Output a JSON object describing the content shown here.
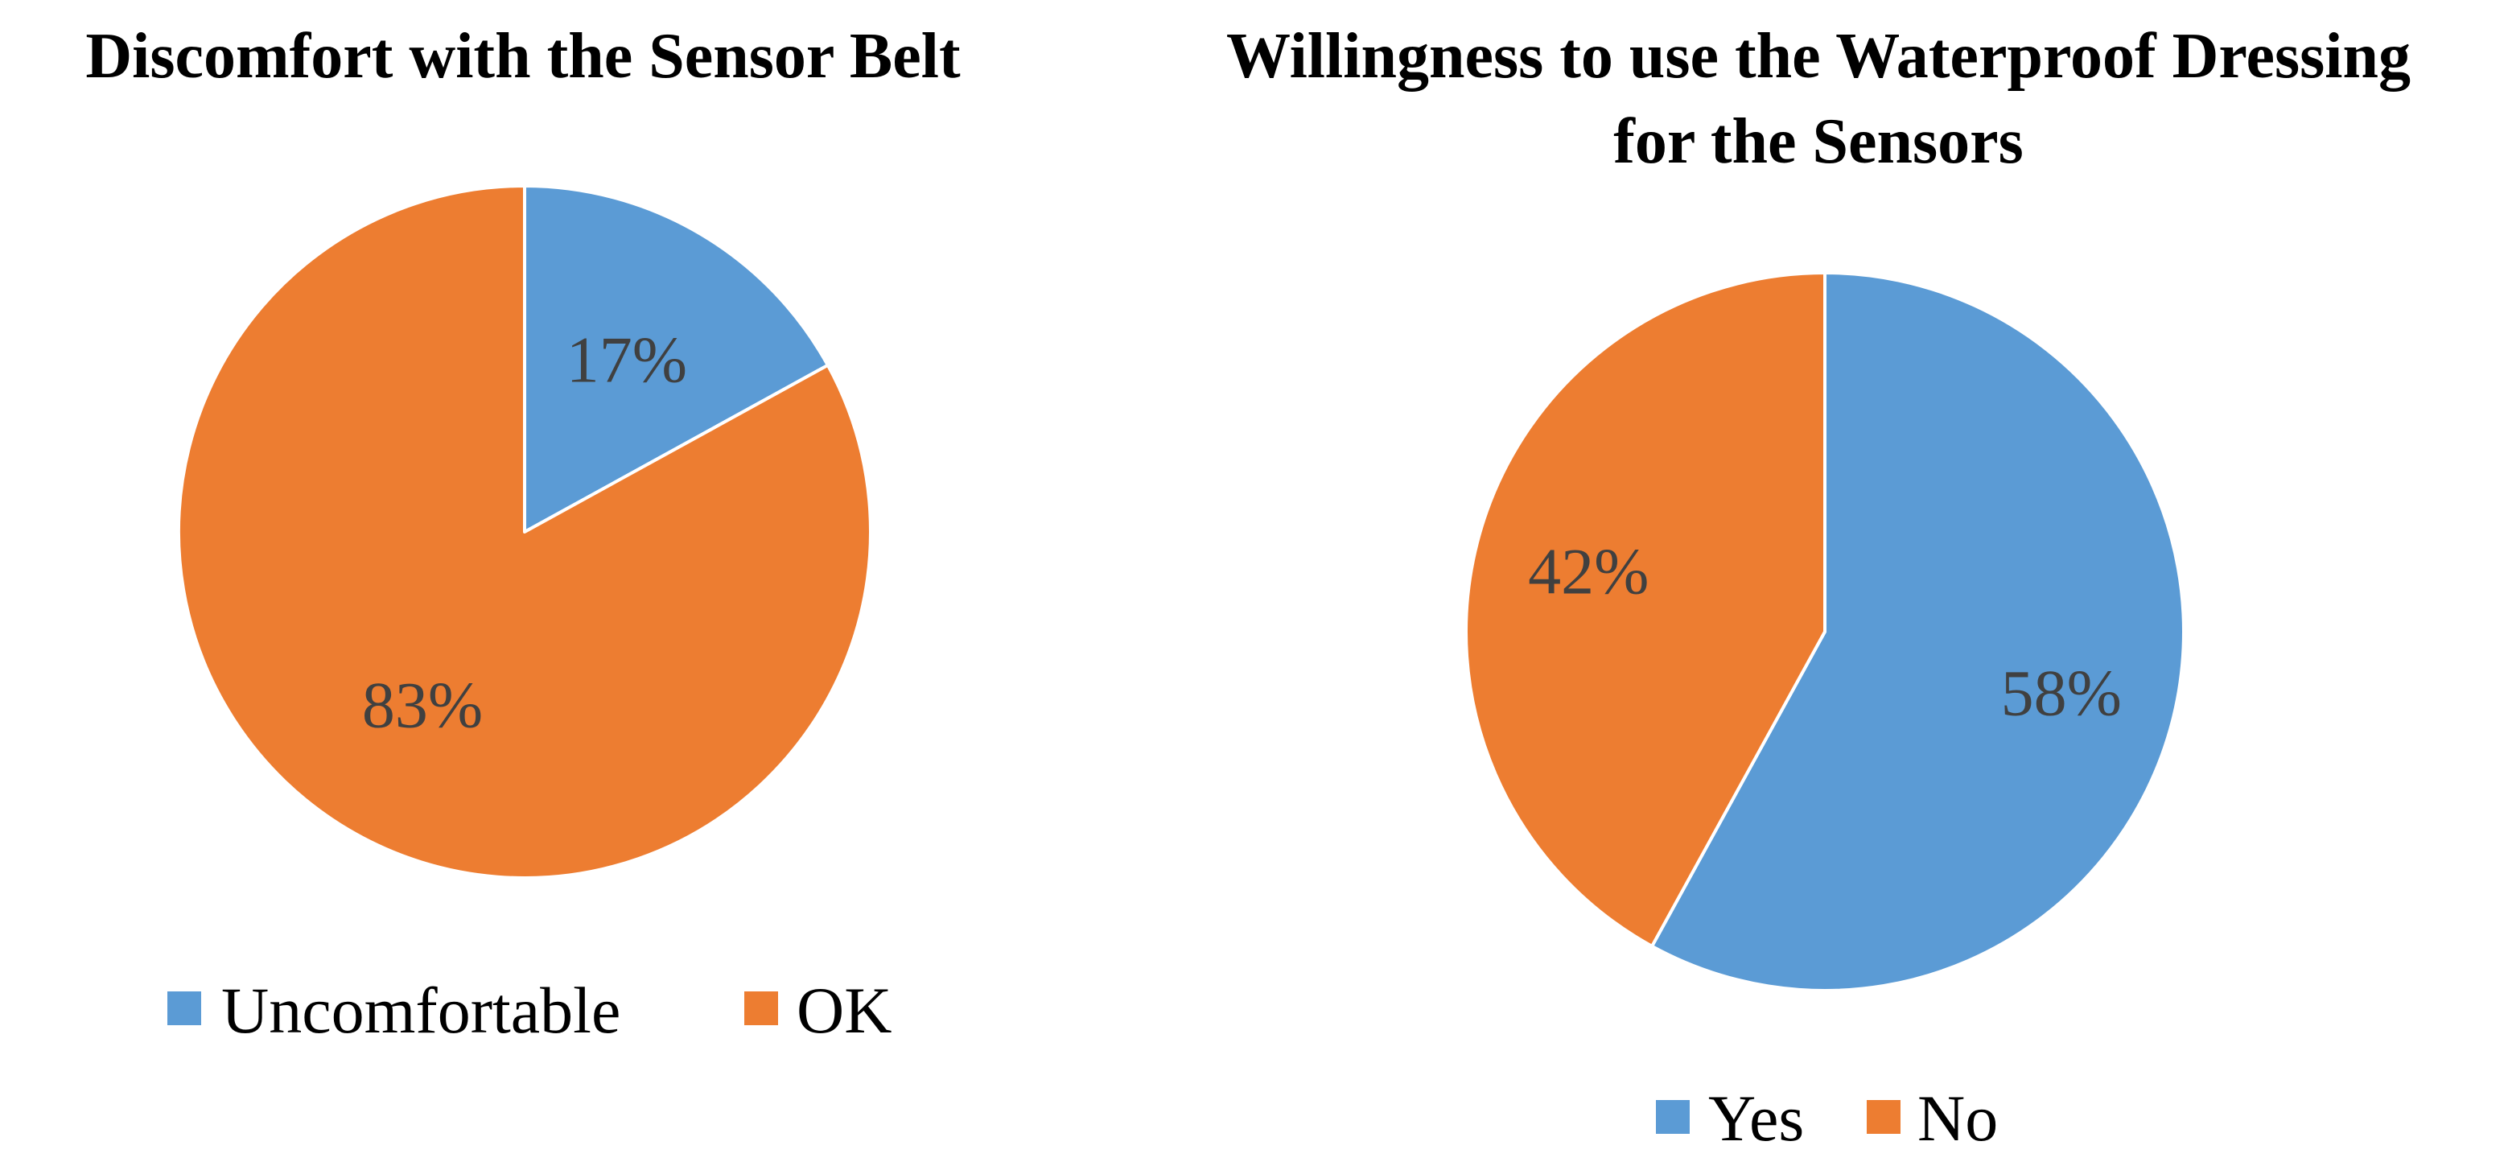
{
  "chart_data": [
    {
      "type": "pie",
      "title": "Discomfort with the Sensor Belt",
      "categories": [
        "Uncomfortable",
        "OK"
      ],
      "values": [
        17,
        83
      ],
      "data_labels": [
        "17%",
        "83%"
      ],
      "colors": [
        "#5B9BD5",
        "#ED7D31"
      ],
      "legend": [
        "Uncomfortable",
        "OK"
      ],
      "legend_position": "bottom"
    },
    {
      "type": "pie",
      "title_lines": [
        "Willingness to use the Waterproof Dressing",
        "for the Sensors"
      ],
      "categories": [
        "Yes",
        "No"
      ],
      "values": [
        58,
        42
      ],
      "data_labels": [
        "58%",
        "42%"
      ],
      "colors": [
        "#5B9BD5",
        "#ED7D31"
      ],
      "legend": [
        "Yes",
        "No"
      ],
      "legend_position": "bottom"
    }
  ]
}
